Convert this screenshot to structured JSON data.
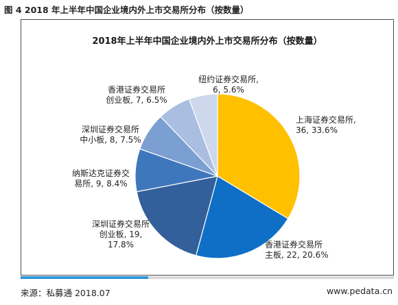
{
  "figure_caption": "图 4 2018 年上半年中国企业境内外上市交易所分布（按数量）",
  "source": "来源：私募通 2018.07",
  "site": "www.pedata.cn",
  "chart_data": {
    "type": "pie",
    "title": "2018年上半年中国企业境内外上市交易所分布（按数量）",
    "start_angle_deg": 90,
    "direction": "clockwise",
    "slices": [
      {
        "name": "上海证券交易所",
        "value": 36,
        "percent": "33.6%",
        "label_lines": [
          "上海证券交易所,",
          "36, 33.6%"
        ],
        "color": "#ffc000"
      },
      {
        "name": "香港证券交易所主板",
        "value": 22,
        "percent": "20.6%",
        "label_lines": [
          "香港证券交易所",
          "主板, 22, 20.6%"
        ],
        "color": "#0f6fc6"
      },
      {
        "name": "深圳证券交易所创业板",
        "value": 19,
        "percent": "17.8%",
        "label_lines": [
          "深圳证券交易所",
          "创业板, 19,",
          "17.8%"
        ],
        "color": "#33609a"
      },
      {
        "name": "纳斯达克证券交易所",
        "value": 9,
        "percent": "8.4%",
        "label_lines": [
          "纳斯达克证券交",
          "易所, 9, 8.4%"
        ],
        "color": "#3f77bd"
      },
      {
        "name": "深圳证券交易所中小板",
        "value": 8,
        "percent": "7.5%",
        "label_lines": [
          "深圳证券交易所",
          "中小板, 8, 7.5%"
        ],
        "color": "#7c9fd1"
      },
      {
        "name": "香港证券交易所创业板",
        "value": 7,
        "percent": "6.5%",
        "label_lines": [
          "香港证券交易所",
          "创业板, 7, 6.5%"
        ],
        "color": "#a9bee0"
      },
      {
        "name": "纽约证券交易所",
        "value": 6,
        "percent": "5.6%",
        "label_lines": [
          "纽约证券交易所,",
          "6, 5.6%"
        ],
        "color": "#cdd8ec"
      }
    ]
  }
}
